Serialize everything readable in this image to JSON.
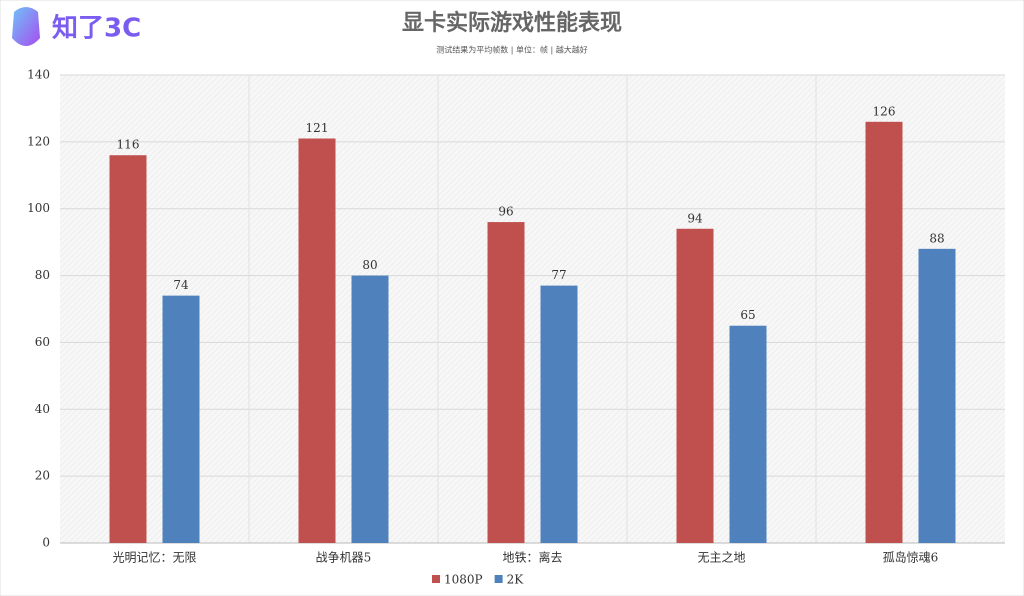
{
  "logo": "知了3C",
  "chart_data": {
    "type": "bar",
    "title": "显卡实际游戏性能表现",
    "subtitle": "测试结果为平均帧数 | 单位：帧 | 越大越好",
    "categories": [
      "光明记忆：无限",
      "战争机器5",
      "地铁：离去",
      "无主之地",
      "孤岛惊魂6"
    ],
    "series": [
      {
        "name": "1080P",
        "color": "#c0504d",
        "values": [
          116,
          121,
          96,
          94,
          126
        ]
      },
      {
        "name": "2K",
        "color": "#4f81bd",
        "values": [
          74,
          80,
          77,
          65,
          88
        ]
      }
    ],
    "ylim": [
      0,
      140
    ],
    "yticks": [
      0,
      20,
      40,
      60,
      80,
      100,
      120,
      140
    ],
    "grid": true,
    "legend": "bottom"
  }
}
